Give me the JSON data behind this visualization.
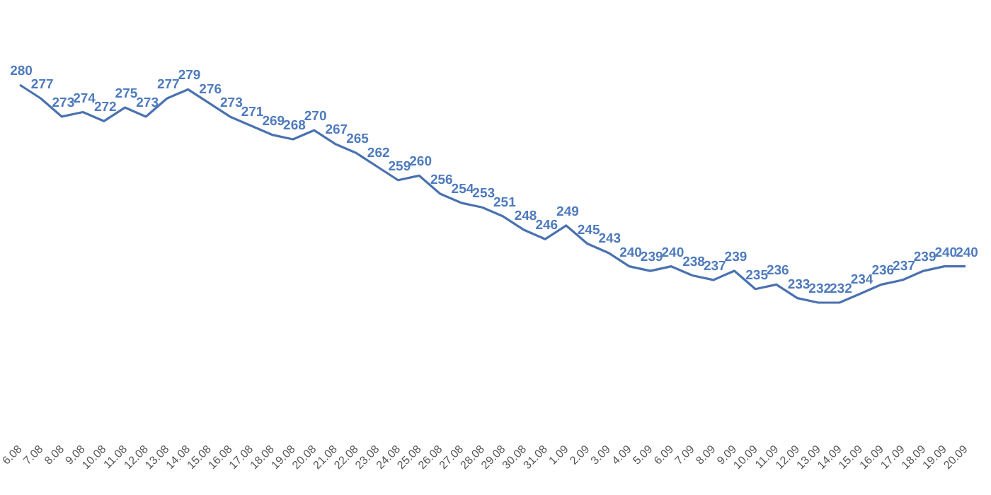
{
  "chart_data": {
    "type": "line",
    "categories": [
      "6.08",
      "7.08",
      "8.08",
      "9.08",
      "10.08",
      "11.08",
      "12.08",
      "13.08",
      "14.08",
      "15.08",
      "16.08",
      "17.08",
      "18.08",
      "19.08",
      "20.08",
      "21.08",
      "22.08",
      "23.08",
      "24.08",
      "25.08",
      "26.08",
      "27.08",
      "28.08",
      "29.08",
      "30.08",
      "31.08",
      "1.09",
      "2.09",
      "3.09",
      "4.09",
      "5.09",
      "6.09",
      "7.09",
      "8.09",
      "9.09",
      "10.09",
      "11.09",
      "12.09",
      "13.09",
      "14.09",
      "15.09",
      "16.09",
      "17.09",
      "18.09",
      "19.09",
      "20.09"
    ],
    "series": [
      {
        "color": "#4a72b0",
        "values": [
          280,
          277,
          273,
          274,
          272,
          275,
          273,
          277,
          279,
          276,
          273,
          271,
          269,
          268,
          270,
          267,
          265,
          262,
          259,
          260,
          256,
          254,
          253,
          251,
          248,
          246,
          249,
          245,
          243,
          240,
          239,
          240,
          238,
          237,
          239,
          235,
          236,
          233,
          232,
          232,
          234,
          236,
          237,
          239,
          240,
          240
        ]
      }
    ],
    "tick_labels": "x",
    "data_labels": true,
    "marker": "none",
    "line_style": "solid"
  }
}
